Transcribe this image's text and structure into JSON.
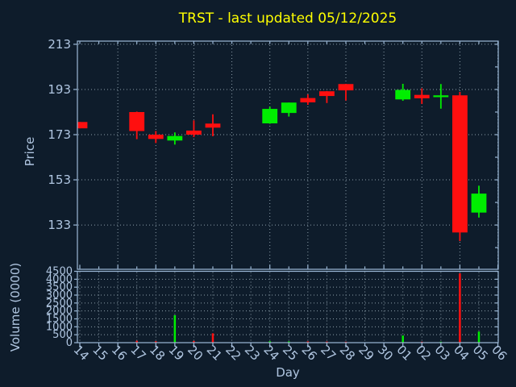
{
  "chart_data": {
    "type": "candlestick+volume",
    "title": "TRST - last updated 05/12/2025",
    "xlabel": "Day",
    "price_ylabel": "Price",
    "volume_ylabel": "Volume (0000)",
    "x_ticklabels": [
      "14",
      "15",
      "16",
      "17",
      "18",
      "19",
      "20",
      "21",
      "22",
      "23",
      "24",
      "25",
      "26",
      "27",
      "28",
      "29",
      "30",
      "01",
      "02",
      "03",
      "04",
      "05",
      "06"
    ],
    "price_yticks": [
      133,
      153,
      173,
      193,
      213
    ],
    "price_ylim": [
      113.4,
      214.4
    ],
    "volume_yticks": [
      0,
      500,
      1000,
      1500,
      2000,
      2500,
      3000,
      3500,
      4000,
      4500
    ],
    "volume_ylim": [
      0,
      4500
    ],
    "grid": "dotted, price panel vertical every 2nd day, volume panel vertical every day",
    "legend": "none",
    "colors": {
      "background": "#0e1c2b",
      "axis": "#9cb8d6",
      "text": "#b0c6e1",
      "grid": "#93a5b1",
      "title": "#ffff00",
      "up": "#00ee00",
      "down": "#ff0f0f"
    },
    "candles": [
      {
        "day": "14",
        "i": 0,
        "open": 178.6,
        "high": 178.6,
        "low": 175.8,
        "close": 175.8,
        "volume": 0
      },
      {
        "day": "17",
        "i": 3,
        "open": 183.0,
        "high": 183.2,
        "low": 171.0,
        "close": 174.6,
        "volume": 120
      },
      {
        "day": "18",
        "i": 4,
        "open": 173.0,
        "high": 174.6,
        "low": 169.3,
        "close": 171.1,
        "volume": 90
      },
      {
        "day": "19",
        "i": 5,
        "open": 170.4,
        "high": 174.0,
        "low": 168.6,
        "close": 172.4,
        "volume": 1730
      },
      {
        "day": "20",
        "i": 6,
        "open": 174.8,
        "high": 179.3,
        "low": 171.9,
        "close": 173.0,
        "volume": 110
      },
      {
        "day": "21",
        "i": 7,
        "open": 177.9,
        "high": 182.0,
        "low": 172.3,
        "close": 176.1,
        "volume": 590
      },
      {
        "day": "24",
        "i": 10,
        "open": 178.0,
        "high": 185.4,
        "low": 177.8,
        "close": 184.4,
        "volume": 90
      },
      {
        "day": "25",
        "i": 11,
        "open": 182.6,
        "high": 187.2,
        "low": 181.0,
        "close": 187.2,
        "volume": 80
      },
      {
        "day": "26",
        "i": 12,
        "open": 189.2,
        "high": 190.8,
        "low": 186.2,
        "close": 187.3,
        "volume": 80
      },
      {
        "day": "27",
        "i": 13,
        "open": 192.2,
        "high": 192.3,
        "low": 187.0,
        "close": 190.1,
        "volume": 70
      },
      {
        "day": "28",
        "i": 14,
        "open": 195.4,
        "high": 195.5,
        "low": 188.1,
        "close": 192.6,
        "volume": 60
      },
      {
        "day": "01",
        "i": 17,
        "open": 188.6,
        "high": 195.5,
        "low": 188.0,
        "close": 192.8,
        "volume": 450
      },
      {
        "day": "02",
        "i": 18,
        "open": 190.6,
        "high": 193.5,
        "low": 186.6,
        "close": 189.1,
        "volume": 60
      },
      {
        "day": "03",
        "i": 19,
        "open": 189.6,
        "high": 195.4,
        "low": 184.5,
        "close": 190.4,
        "volume": 60
      },
      {
        "day": "04",
        "i": 20,
        "open": 190.4,
        "high": 191.9,
        "low": 125.9,
        "close": 129.7,
        "volume": 4370
      },
      {
        "day": "05",
        "i": 21,
        "open": 138.5,
        "high": 150.4,
        "low": 136.3,
        "close": 146.9,
        "volume": 700
      }
    ]
  }
}
